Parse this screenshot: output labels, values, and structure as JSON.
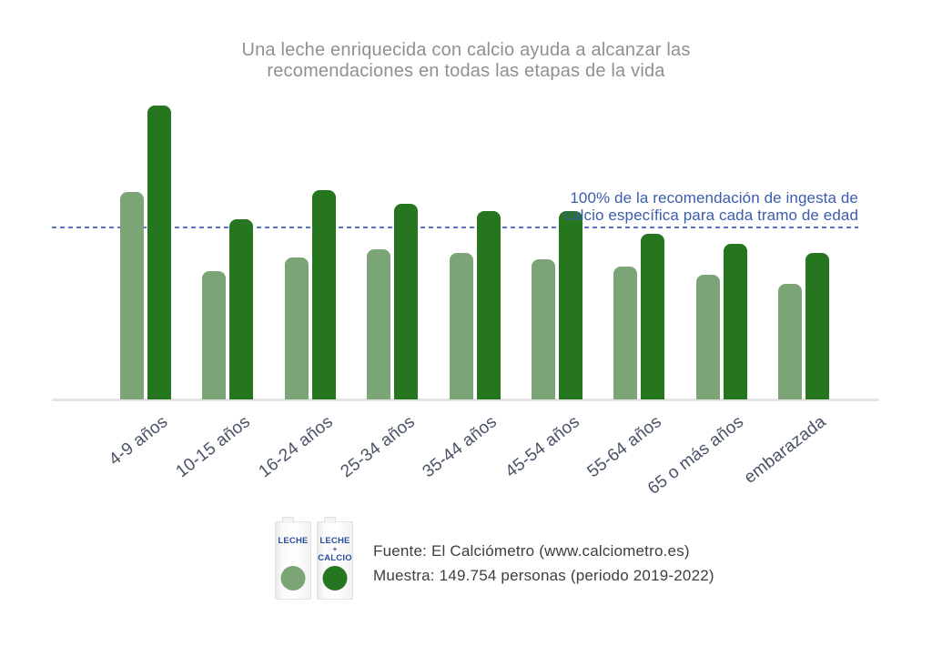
{
  "title": {
    "line1": "Una leche enriquecida con calcio ayuda a alcanzar las",
    "line2": "recomendaciones en todas las etapas de la vida"
  },
  "annotation": {
    "line1": "100% de la recomendación de ingesta de",
    "line2": "calcio específica para cada tramo de edad"
  },
  "legend": {
    "items": [
      {
        "icon": "milk-carton-icon",
        "label_lines": [
          "LECHE"
        ],
        "color": "#7ca577",
        "series": "Leche"
      },
      {
        "icon": "milk-carton-icon",
        "label_lines": [
          "LECHE",
          "+",
          "CALCIO"
        ],
        "color": "#26751f",
        "series": "Leche + Calcio"
      }
    ]
  },
  "footer": {
    "source": "Fuente: El Calciómetro (www.calciometro.es)",
    "sample": "Muestra: 149.754 personas (periodo 2019-2022)"
  },
  "chart_data": {
    "type": "bar",
    "title": "Una leche enriquecida con calcio ayuda a alcanzar las recomendaciones en todas las etapas de la vida",
    "categories": [
      "4-9 años",
      "10-15 años",
      "16-24 años",
      "25-34 años",
      "35-44 años",
      "45-54 años",
      "55-64 años",
      "65 o más años",
      "embarazada"
    ],
    "series": [
      {
        "name": "Leche",
        "color": "#7ca577",
        "values": [
          120,
          74,
          82,
          87,
          85,
          81,
          77,
          72,
          67
        ]
      },
      {
        "name": "Leche + Calcio",
        "color": "#26751f",
        "values": [
          170,
          104,
          121,
          113,
          109,
          109,
          96,
          90,
          85
        ]
      }
    ],
    "unit": "percent of recommended calcium intake",
    "reference_line": {
      "value": 100,
      "label": "100% de la recomendación de ingesta de calcio específica para cada tramo de edad",
      "color": "#5a73c5",
      "style": "dashed"
    },
    "ylim": [
      0,
      180
    ],
    "grid": false,
    "legend_position": "bottom",
    "x_tick_rotation": -38
  },
  "colors": {
    "title_text": "#909090",
    "axis_labels": "#4a5267",
    "annotation_text": "#3b5dac",
    "reference_line": "#5a73c5",
    "baseline": "#e4e4e4",
    "footer_text": "#3e3e3e",
    "carton_label": "#2a4d9e"
  }
}
